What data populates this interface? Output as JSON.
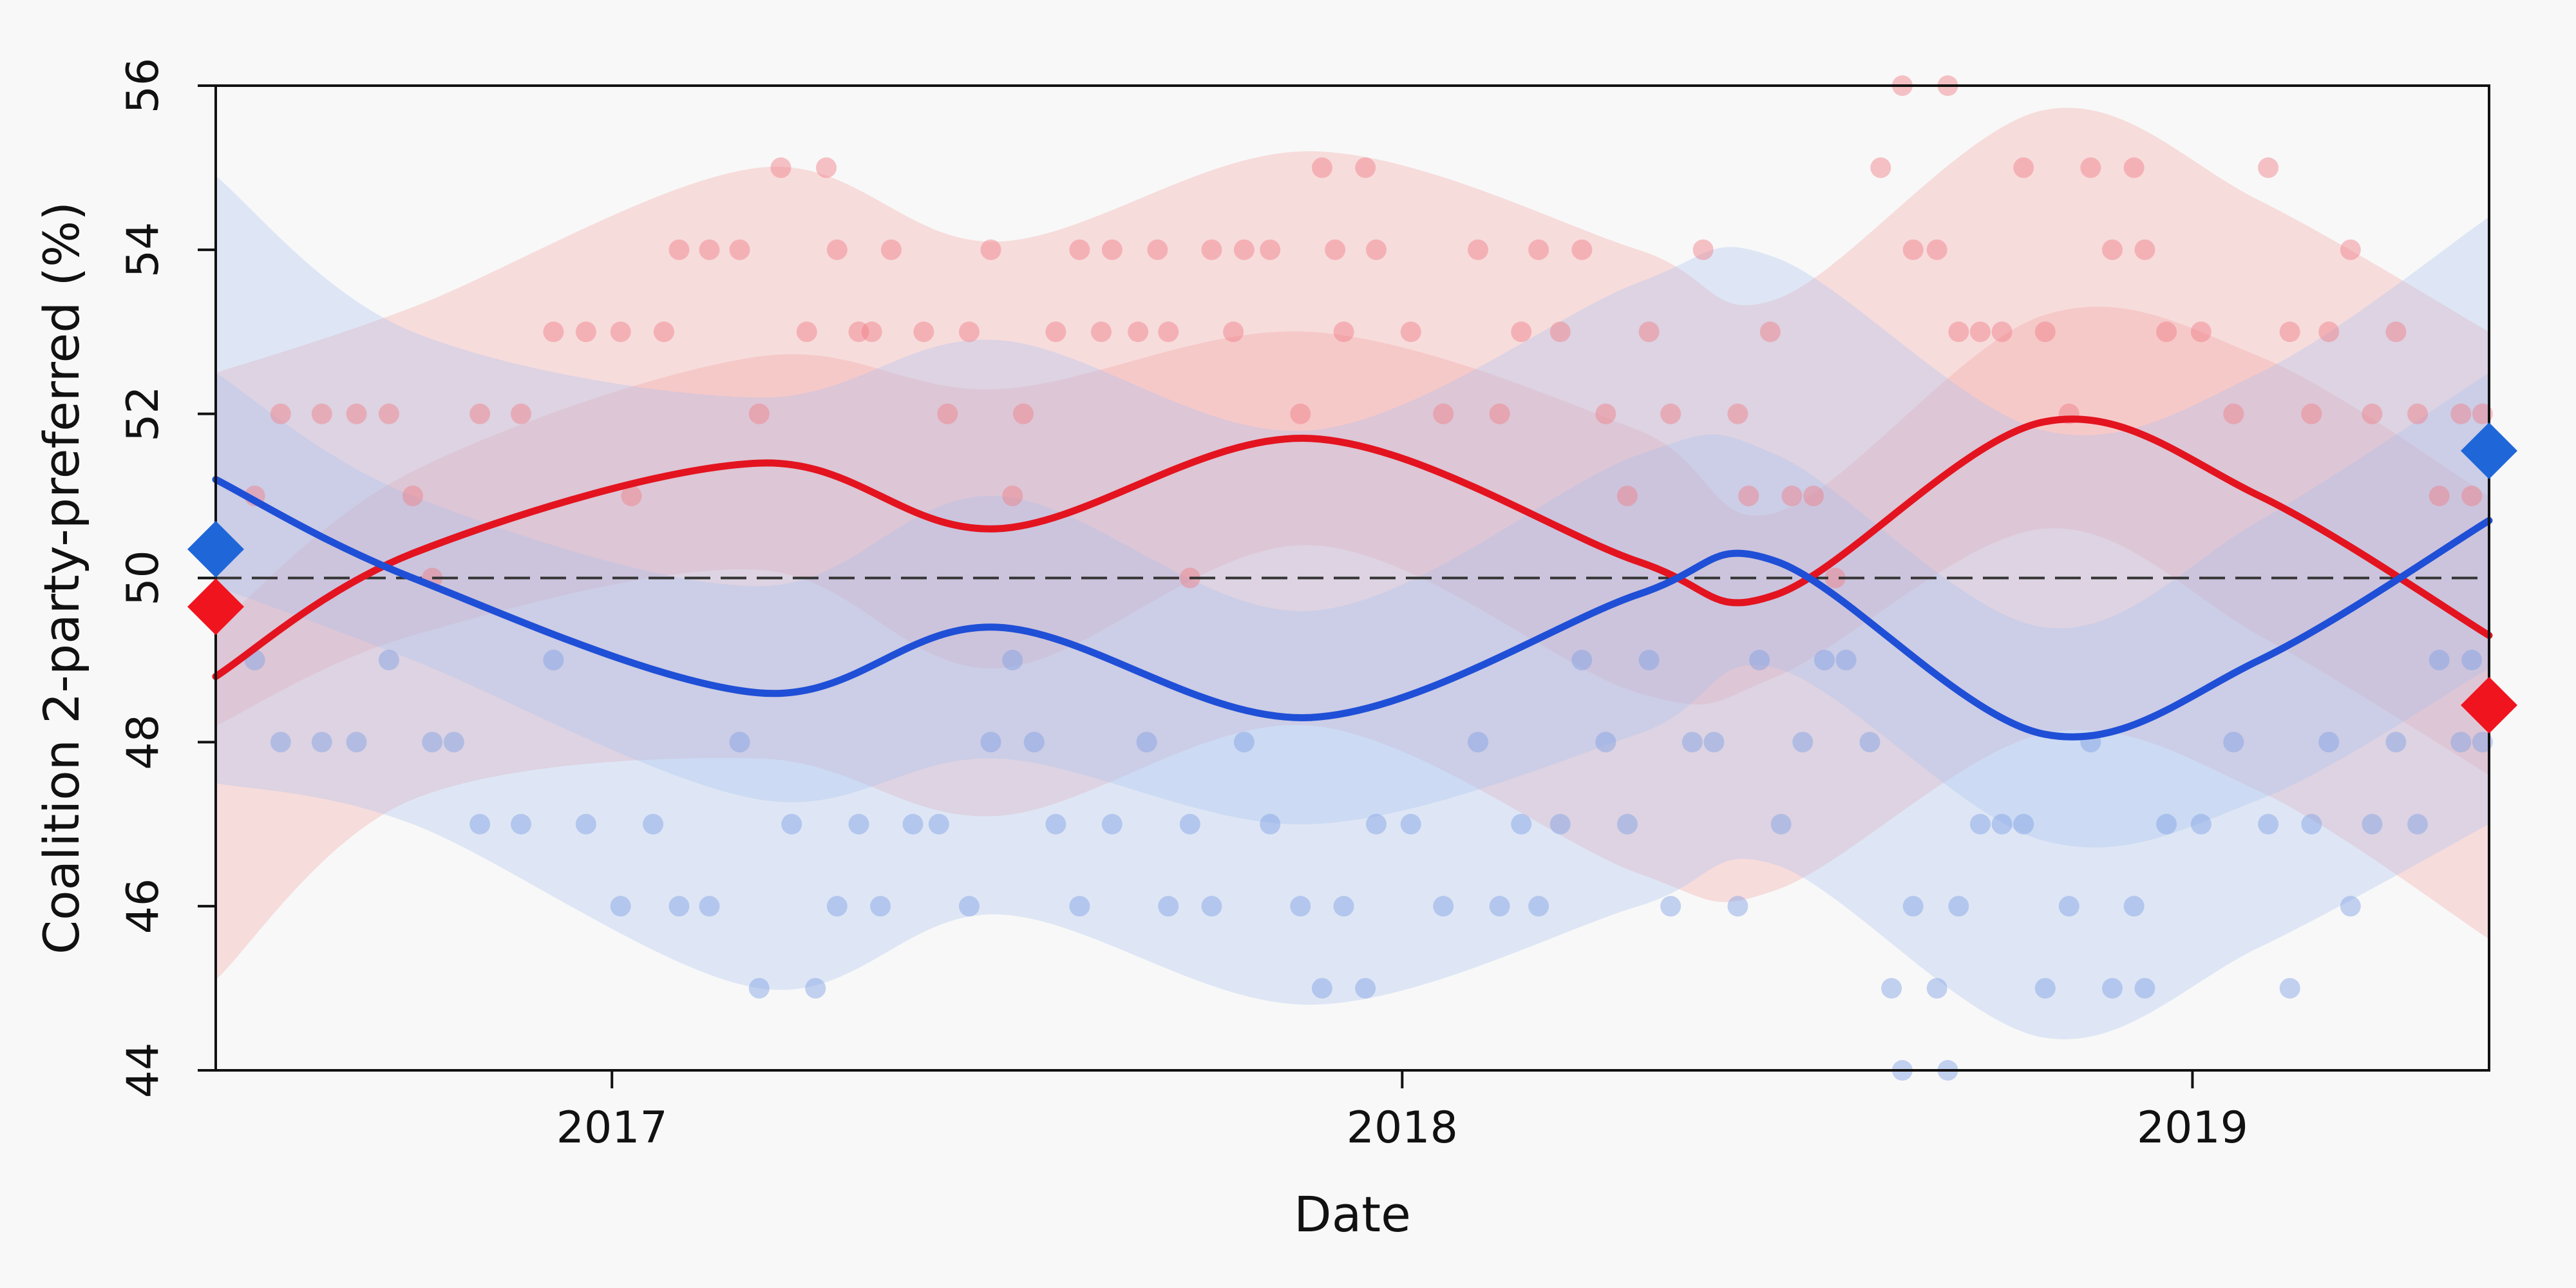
{
  "chart_data": {
    "type": "line",
    "xlabel": "Date",
    "ylabel": "Coalition 2-party-preferred (%)",
    "xlim": [
      "2016-07-02",
      "2019-05-18"
    ],
    "ylim": [
      44,
      56
    ],
    "x_ticks": [
      {
        "date": "2017-01-01",
        "label": "2017"
      },
      {
        "date": "2018-01-01",
        "label": "2018"
      },
      {
        "date": "2019-01-01",
        "label": "2019"
      }
    ],
    "y_ticks": [
      44,
      46,
      48,
      50,
      52,
      54,
      56
    ],
    "reference_line": {
      "y": 50,
      "style": "dashed"
    },
    "series": [
      {
        "color": "#e3141f",
        "band_color": "#f7a3a3",
        "dates": [
          "2016-07-02",
          "2016-10-01",
          "2017-03-10",
          "2017-06-28",
          "2017-11-20",
          "2018-04-20",
          "2018-06-23",
          "2018-10-24",
          "2019-02-01",
          "2019-05-18"
        ],
        "values": [
          48.8,
          50.3,
          51.4,
          50.6,
          51.7,
          50.2,
          49.8,
          51.9,
          51.0,
          49.3
        ],
        "band_inner": [
          0.6,
          1.0,
          1.3,
          1.7,
          1.3,
          1.6,
          1.0,
          1.3,
          1.7,
          1.7
        ],
        "band_outer": [
          3.7,
          3.0,
          3.6,
          3.5,
          3.5,
          3.8,
          3.6,
          3.8,
          3.6,
          3.7
        ],
        "points": [
          [
            "2016-07-20",
            51
          ],
          [
            "2016-08-01",
            52
          ],
          [
            "2016-08-20",
            52
          ],
          [
            "2016-09-05",
            52
          ],
          [
            "2016-09-20",
            52
          ],
          [
            "2016-10-01",
            51
          ],
          [
            "2016-10-10",
            50
          ],
          [
            "2016-11-01",
            52
          ],
          [
            "2016-11-20",
            52
          ],
          [
            "2016-12-05",
            53
          ],
          [
            "2016-12-20",
            53
          ],
          [
            "2017-01-05",
            53
          ],
          [
            "2017-01-10",
            51
          ],
          [
            "2017-01-25",
            53
          ],
          [
            "2017-02-01",
            54
          ],
          [
            "2017-02-15",
            54
          ],
          [
            "2017-03-01",
            54
          ],
          [
            "2017-03-10",
            52
          ],
          [
            "2017-03-20",
            55
          ],
          [
            "2017-04-01",
            53
          ],
          [
            "2017-04-10",
            55
          ],
          [
            "2017-04-15",
            54
          ],
          [
            "2017-04-25",
            53
          ],
          [
            "2017-05-01",
            53
          ],
          [
            "2017-05-10",
            54
          ],
          [
            "2017-05-25",
            53
          ],
          [
            "2017-06-05",
            52
          ],
          [
            "2017-06-15",
            53
          ],
          [
            "2017-06-25",
            54
          ],
          [
            "2017-07-05",
            51
          ],
          [
            "2017-07-10",
            52
          ],
          [
            "2017-07-25",
            53
          ],
          [
            "2017-08-05",
            54
          ],
          [
            "2017-08-15",
            53
          ],
          [
            "2017-08-20",
            54
          ],
          [
            "2017-09-01",
            53
          ],
          [
            "2017-09-10",
            54
          ],
          [
            "2017-09-15",
            53
          ],
          [
            "2017-09-25",
            50
          ],
          [
            "2017-10-05",
            54
          ],
          [
            "2017-10-15",
            53
          ],
          [
            "2017-10-20",
            54
          ],
          [
            "2017-11-01",
            54
          ],
          [
            "2017-11-15",
            52
          ],
          [
            "2017-11-25",
            55
          ],
          [
            "2017-12-01",
            54
          ],
          [
            "2017-12-05",
            53
          ],
          [
            "2017-12-15",
            55
          ],
          [
            "2017-12-20",
            54
          ],
          [
            "2018-01-05",
            53
          ],
          [
            "2018-01-20",
            52
          ],
          [
            "2018-02-05",
            54
          ],
          [
            "2018-02-15",
            52
          ],
          [
            "2018-02-25",
            53
          ],
          [
            "2018-03-05",
            54
          ],
          [
            "2018-03-15",
            53
          ],
          [
            "2018-03-25",
            54
          ],
          [
            "2018-04-05",
            52
          ],
          [
            "2018-04-15",
            51
          ],
          [
            "2018-04-25",
            53
          ],
          [
            "2018-05-05",
            52
          ],
          [
            "2018-05-20",
            54
          ],
          [
            "2018-06-05",
            52
          ],
          [
            "2018-06-10",
            51
          ],
          [
            "2018-06-20",
            53
          ],
          [
            "2018-06-30",
            51
          ],
          [
            "2018-07-10",
            51
          ],
          [
            "2018-07-20",
            50
          ],
          [
            "2018-08-10",
            55
          ],
          [
            "2018-08-20",
            56
          ],
          [
            "2018-08-25",
            54
          ],
          [
            "2018-09-05",
            54
          ],
          [
            "2018-09-10",
            56
          ],
          [
            "2018-09-15",
            53
          ],
          [
            "2018-09-25",
            53
          ],
          [
            "2018-10-05",
            53
          ],
          [
            "2018-10-15",
            55
          ],
          [
            "2018-10-25",
            53
          ],
          [
            "2018-11-05",
            52
          ],
          [
            "2018-11-15",
            55
          ],
          [
            "2018-11-25",
            54
          ],
          [
            "2018-12-05",
            55
          ],
          [
            "2018-12-10",
            54
          ],
          [
            "2018-12-20",
            53
          ],
          [
            "2019-01-05",
            53
          ],
          [
            "2019-01-20",
            52
          ],
          [
            "2019-02-05",
            55
          ],
          [
            "2019-02-15",
            53
          ],
          [
            "2019-02-25",
            52
          ],
          [
            "2019-03-05",
            53
          ],
          [
            "2019-03-15",
            54
          ],
          [
            "2019-03-25",
            52
          ],
          [
            "2019-04-05",
            53
          ],
          [
            "2019-04-15",
            52
          ],
          [
            "2019-04-25",
            51
          ],
          [
            "2019-05-05",
            52
          ],
          [
            "2019-05-10",
            51
          ],
          [
            "2019-05-15",
            52
          ]
        ],
        "end_marker": {
          "date": "2019-05-18",
          "value": 48.45
        }
      },
      {
        "color": "#1f4fd6",
        "band_color": "#a9c1f1",
        "dates": [
          "2016-07-02",
          "2016-10-01",
          "2017-03-10",
          "2017-06-28",
          "2017-11-20",
          "2018-04-20",
          "2018-06-23",
          "2018-10-24",
          "2019-02-01",
          "2019-05-18"
        ],
        "values": [
          51.2,
          50.0,
          48.6,
          49.4,
          48.3,
          49.8,
          50.2,
          48.1,
          49.0,
          50.7
        ],
        "band_inner": [
          1.3,
          1.0,
          1.3,
          1.6,
          1.3,
          1.7,
          1.3,
          1.3,
          1.7,
          1.8
        ],
        "band_outer": [
          3.7,
          3.0,
          3.6,
          3.5,
          3.5,
          3.8,
          3.7,
          3.7,
          3.5,
          3.7
        ],
        "points": [
          [
            "2016-07-20",
            49
          ],
          [
            "2016-08-01",
            48
          ],
          [
            "2016-08-20",
            48
          ],
          [
            "2016-09-05",
            48
          ],
          [
            "2016-09-20",
            49
          ],
          [
            "2016-10-10",
            48
          ],
          [
            "2016-10-20",
            48
          ],
          [
            "2016-11-01",
            47
          ],
          [
            "2016-11-20",
            47
          ],
          [
            "2016-12-05",
            49
          ],
          [
            "2016-12-20",
            47
          ],
          [
            "2017-01-05",
            46
          ],
          [
            "2017-01-20",
            47
          ],
          [
            "2017-02-01",
            46
          ],
          [
            "2017-02-15",
            46
          ],
          [
            "2017-03-01",
            48
          ],
          [
            "2017-03-10",
            45
          ],
          [
            "2017-03-25",
            47
          ],
          [
            "2017-04-05",
            45
          ],
          [
            "2017-04-15",
            46
          ],
          [
            "2017-04-25",
            47
          ],
          [
            "2017-05-05",
            46
          ],
          [
            "2017-05-20",
            47
          ],
          [
            "2017-06-01",
            47
          ],
          [
            "2017-06-15",
            46
          ],
          [
            "2017-06-25",
            48
          ],
          [
            "2017-07-05",
            49
          ],
          [
            "2017-07-15",
            48
          ],
          [
            "2017-07-25",
            47
          ],
          [
            "2017-08-05",
            46
          ],
          [
            "2017-08-20",
            47
          ],
          [
            "2017-09-05",
            48
          ],
          [
            "2017-09-15",
            46
          ],
          [
            "2017-09-25",
            47
          ],
          [
            "2017-10-05",
            46
          ],
          [
            "2017-10-20",
            48
          ],
          [
            "2017-11-01",
            47
          ],
          [
            "2017-11-15",
            46
          ],
          [
            "2017-11-25",
            45
          ],
          [
            "2017-12-05",
            46
          ],
          [
            "2017-12-15",
            45
          ],
          [
            "2017-12-20",
            47
          ],
          [
            "2018-01-05",
            47
          ],
          [
            "2018-01-20",
            46
          ],
          [
            "2018-02-05",
            48
          ],
          [
            "2018-02-15",
            46
          ],
          [
            "2018-02-25",
            47
          ],
          [
            "2018-03-05",
            46
          ],
          [
            "2018-03-15",
            47
          ],
          [
            "2018-03-25",
            49
          ],
          [
            "2018-04-05",
            48
          ],
          [
            "2018-04-15",
            47
          ],
          [
            "2018-04-25",
            49
          ],
          [
            "2018-05-05",
            46
          ],
          [
            "2018-05-15",
            48
          ],
          [
            "2018-05-25",
            48
          ],
          [
            "2018-06-05",
            46
          ],
          [
            "2018-06-15",
            49
          ],
          [
            "2018-06-25",
            47
          ],
          [
            "2018-07-05",
            48
          ],
          [
            "2018-07-15",
            49
          ],
          [
            "2018-07-25",
            49
          ],
          [
            "2018-08-05",
            48
          ],
          [
            "2018-08-15",
            45
          ],
          [
            "2018-08-20",
            44
          ],
          [
            "2018-08-25",
            46
          ],
          [
            "2018-09-05",
            45
          ],
          [
            "2018-09-10",
            44
          ],
          [
            "2018-09-15",
            46
          ],
          [
            "2018-09-25",
            47
          ],
          [
            "2018-10-05",
            47
          ],
          [
            "2018-10-15",
            47
          ],
          [
            "2018-10-25",
            45
          ],
          [
            "2018-11-05",
            46
          ],
          [
            "2018-11-15",
            48
          ],
          [
            "2018-11-25",
            45
          ],
          [
            "2018-12-05",
            46
          ],
          [
            "2018-12-10",
            45
          ],
          [
            "2018-12-20",
            47
          ],
          [
            "2019-01-05",
            47
          ],
          [
            "2019-01-20",
            48
          ],
          [
            "2019-02-05",
            47
          ],
          [
            "2019-02-15",
            45
          ],
          [
            "2019-02-25",
            47
          ],
          [
            "2019-03-05",
            48
          ],
          [
            "2019-03-15",
            46
          ],
          [
            "2019-03-25",
            47
          ],
          [
            "2019-04-05",
            48
          ],
          [
            "2019-04-15",
            47
          ],
          [
            "2019-04-25",
            49
          ],
          [
            "2019-05-05",
            48
          ],
          [
            "2019-05-10",
            49
          ],
          [
            "2019-05-15",
            48
          ]
        ],
        "end_marker": {
          "date": "2019-05-18",
          "value": 51.55
        }
      }
    ],
    "start_markers": [
      {
        "series": 1,
        "date": "2016-07-02",
        "value": 50.35
      },
      {
        "series": 0,
        "date": "2016-07-02",
        "value": 49.65
      }
    ],
    "grid": false,
    "legend": "none"
  }
}
